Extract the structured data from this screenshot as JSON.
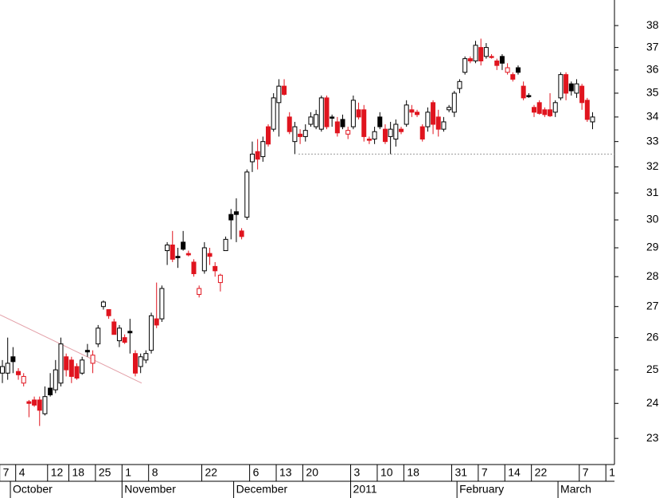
{
  "chart_data": {
    "type": "candlestick",
    "log_scale": true,
    "ylim": [
      22.28,
      39.2
    ],
    "yticks": [
      23,
      24,
      25,
      26,
      27,
      28,
      29,
      30,
      31,
      32,
      33,
      34,
      35,
      36,
      37,
      38
    ],
    "up_color": "#000000",
    "down_color": "#e0141e",
    "trendline": [
      26.73,
      24.6
    ],
    "hline": 32.5,
    "categories": [
      "7",
      null,
      null,
      "4",
      null,
      null,
      null,
      null,
      null,
      "12",
      null,
      null,
      null,
      "18",
      null,
      null,
      null,
      null,
      "25",
      null,
      null,
      null,
      null,
      "1",
      null,
      null,
      null,
      null,
      "8",
      null,
      null,
      null,
      null,
      null,
      null,
      null,
      null,
      null,
      "22",
      null,
      null,
      null,
      null,
      null,
      null,
      null,
      null,
      "6",
      null,
      null,
      null,
      null,
      "13",
      null,
      null,
      null,
      null,
      "20",
      null,
      null,
      null,
      null,
      null,
      null,
      null,
      null,
      "3",
      null,
      null,
      null,
      null,
      "10",
      null,
      null,
      null,
      null,
      "18",
      null,
      null,
      null,
      null,
      null,
      null,
      null,
      null,
      "31",
      null,
      null,
      null,
      null,
      "7",
      null,
      null,
      null,
      null,
      "14",
      null,
      null,
      null,
      null,
      "22",
      null,
      null,
      null,
      null,
      null,
      null,
      null,
      null,
      "7",
      null,
      null,
      null,
      null,
      "1"
    ],
    "months": [
      null,
      null,
      "October",
      null,
      null,
      null,
      null,
      null,
      null,
      null,
      null,
      null,
      null,
      null,
      null,
      null,
      null,
      null,
      null,
      null,
      null,
      null,
      null,
      "November",
      null,
      null,
      null,
      null,
      null,
      null,
      null,
      null,
      null,
      null,
      null,
      null,
      null,
      null,
      null,
      null,
      null,
      null,
      null,
      null,
      "December",
      null,
      null,
      null,
      null,
      null,
      null,
      null,
      null,
      null,
      null,
      null,
      null,
      null,
      null,
      null,
      null,
      null,
      null,
      null,
      null,
      null,
      "2011",
      null,
      null,
      null,
      null,
      null,
      null,
      null,
      null,
      null,
      null,
      null,
      null,
      null,
      null,
      null,
      null,
      null,
      null,
      null,
      "February",
      null,
      null,
      null,
      null,
      null,
      null,
      null,
      null,
      null,
      null,
      null,
      null,
      null,
      null,
      null,
      null,
      null,
      null,
      "March",
      null,
      null,
      null,
      null,
      null,
      null,
      null,
      null,
      null
    ],
    "candles": [
      {
        "open": 24.9,
        "high": 25.3,
        "low": 24.6,
        "close": 25.1
      },
      {
        "open": 24.9,
        "high": 26.0,
        "low": 24.7,
        "close": 25.2
      },
      {
        "open": 25.4,
        "high": 25.7,
        "low": 24.9,
        "close": 25.25
      },
      {
        "open": 24.95,
        "high": 25.05,
        "low": 24.7,
        "close": 24.85
      },
      {
        "open": 24.6,
        "high": 24.9,
        "low": 24.5,
        "close": 24.8
      },
      {
        "open": 24.05,
        "high": 24.1,
        "low": 23.6,
        "close": 24.0
      },
      {
        "open": 24.1,
        "high": 24.2,
        "low": 23.9,
        "close": 23.95
      },
      {
        "open": 24.1,
        "high": 24.2,
        "low": 23.35,
        "close": 23.8
      },
      {
        "open": 23.7,
        "high": 24.5,
        "low": 23.65,
        "close": 24.2
      },
      {
        "open": 24.45,
        "high": 24.9,
        "low": 24.2,
        "close": 24.25
      },
      {
        "open": 24.4,
        "high": 25.3,
        "low": 24.3,
        "close": 25.0
      },
      {
        "open": 24.6,
        "high": 26.0,
        "low": 24.5,
        "close": 25.8
      },
      {
        "open": 25.4,
        "high": 25.5,
        "low": 24.8,
        "close": 25.0
      },
      {
        "open": 25.3,
        "high": 25.4,
        "low": 24.6,
        "close": 24.8
      },
      {
        "open": 25.1,
        "high": 25.2,
        "low": 24.7,
        "close": 24.75
      },
      {
        "open": 24.9,
        "high": 25.4,
        "low": 24.85,
        "close": 25.3
      },
      {
        "open": 25.6,
        "high": 25.8,
        "low": 25.4,
        "close": 25.55
      },
      {
        "open": 25.2,
        "high": 25.6,
        "low": 24.9,
        "close": 25.45
      },
      {
        "open": 25.8,
        "high": 26.4,
        "low": 25.7,
        "close": 26.3
      },
      {
        "open": 27.0,
        "high": 27.2,
        "low": 26.9,
        "close": 27.15
      },
      {
        "open": 26.9,
        "high": 26.9,
        "low": 26.6,
        "close": 26.7
      },
      {
        "open": 26.5,
        "high": 26.6,
        "low": 26.1,
        "close": 26.1
      },
      {
        "open": 25.9,
        "high": 26.4,
        "low": 25.7,
        "close": 26.3
      },
      {
        "open": 26.0,
        "high": 26.1,
        "low": 25.8,
        "close": 25.85
      },
      {
        "open": 26.2,
        "high": 26.6,
        "low": 25.5,
        "close": 26.15
      },
      {
        "open": 25.5,
        "high": 25.6,
        "low": 24.8,
        "close": 24.9
      },
      {
        "open": 25.1,
        "high": 25.5,
        "low": 24.9,
        "close": 25.4
      },
      {
        "open": 25.3,
        "high": 25.6,
        "low": 25.2,
        "close": 25.5
      },
      {
        "open": 25.6,
        "high": 26.8,
        "low": 25.5,
        "close": 26.7
      },
      {
        "open": 26.6,
        "high": 27.8,
        "low": 26.3,
        "close": 26.4
      },
      {
        "open": 26.6,
        "high": 27.7,
        "low": 26.5,
        "close": 27.6
      },
      {
        "open": 28.9,
        "high": 29.2,
        "low": 28.4,
        "close": 29.1
      },
      {
        "open": 29.1,
        "high": 29.6,
        "low": 28.5,
        "close": 28.6
      },
      {
        "open": 28.7,
        "high": 29.0,
        "low": 28.3,
        "close": 28.65
      },
      {
        "open": 29.2,
        "high": 29.6,
        "low": 28.9,
        "close": 28.95
      },
      {
        "open": 28.8,
        "high": 28.9,
        "low": 28.7,
        "close": 28.75
      },
      {
        "open": 28.5,
        "high": 28.6,
        "low": 28.0,
        "close": 28.1
      },
      {
        "open": 27.4,
        "high": 27.7,
        "low": 27.3,
        "close": 27.6
      },
      {
        "open": 28.2,
        "high": 29.2,
        "low": 28.1,
        "close": 29.0
      },
      {
        "open": 28.8,
        "high": 29.0,
        "low": 28.4,
        "close": 28.7
      },
      {
        "open": 28.35,
        "high": 28.5,
        "low": 28.0,
        "close": 28.2
      },
      {
        "open": 27.8,
        "high": 28.1,
        "low": 27.5,
        "close": 28.05
      },
      {
        "open": 28.9,
        "high": 29.4,
        "low": 28.9,
        "close": 29.3
      },
      {
        "open": 30.2,
        "high": 30.4,
        "low": 29.3,
        "close": 30.0
      },
      {
        "open": 30.3,
        "high": 30.8,
        "low": 29.2,
        "close": 30.2
      },
      {
        "open": 29.6,
        "high": 29.7,
        "low": 29.3,
        "close": 29.4
      },
      {
        "open": 30.1,
        "high": 31.9,
        "low": 30.0,
        "close": 31.8
      },
      {
        "open": 32.2,
        "high": 33.0,
        "low": 31.8,
        "close": 32.5
      },
      {
        "open": 32.6,
        "high": 33.1,
        "low": 31.9,
        "close": 32.3
      },
      {
        "open": 32.4,
        "high": 33.2,
        "low": 32.2,
        "close": 33.0
      },
      {
        "open": 33.6,
        "high": 33.7,
        "low": 32.8,
        "close": 32.9
      },
      {
        "open": 33.5,
        "high": 35.0,
        "low": 33.4,
        "close": 34.8
      },
      {
        "open": 34.6,
        "high": 35.6,
        "low": 33.2,
        "close": 35.3
      },
      {
        "open": 35.3,
        "high": 35.6,
        "low": 34.9,
        "close": 34.95
      },
      {
        "open": 34.0,
        "high": 34.2,
        "low": 33.3,
        "close": 33.4
      },
      {
        "open": 33.0,
        "high": 33.8,
        "low": 32.5,
        "close": 33.6
      },
      {
        "open": 33.3,
        "high": 33.5,
        "low": 32.9,
        "close": 33.2
      },
      {
        "open": 33.2,
        "high": 33.7,
        "low": 33.0,
        "close": 33.45
      },
      {
        "open": 33.7,
        "high": 34.2,
        "low": 33.6,
        "close": 34.0
      },
      {
        "open": 33.6,
        "high": 34.3,
        "low": 33.5,
        "close": 34.1
      },
      {
        "open": 33.5,
        "high": 34.9,
        "low": 33.4,
        "close": 34.8
      },
      {
        "open": 34.8,
        "high": 34.9,
        "low": 33.5,
        "close": 33.6
      },
      {
        "open": 34.0,
        "high": 34.1,
        "low": 33.6,
        "close": 33.95
      },
      {
        "open": 33.8,
        "high": 34.0,
        "low": 33.2,
        "close": 33.35
      },
      {
        "open": 33.9,
        "high": 34.1,
        "low": 33.5,
        "close": 33.6
      },
      {
        "open": 33.3,
        "high": 33.6,
        "low": 33.1,
        "close": 33.45
      },
      {
        "open": 33.6,
        "high": 34.9,
        "low": 33.5,
        "close": 34.7
      },
      {
        "open": 34.3,
        "high": 34.6,
        "low": 33.9,
        "close": 34.0
      },
      {
        "open": 34.3,
        "high": 34.5,
        "low": 33.0,
        "close": 33.2
      },
      {
        "open": 33.1,
        "high": 33.2,
        "low": 32.9,
        "close": 33.05
      },
      {
        "open": 33.1,
        "high": 33.6,
        "low": 32.9,
        "close": 33.4
      },
      {
        "open": 34.0,
        "high": 34.2,
        "low": 33.5,
        "close": 33.6
      },
      {
        "open": 33.5,
        "high": 33.7,
        "low": 32.9,
        "close": 33.0
      },
      {
        "open": 33.2,
        "high": 33.8,
        "low": 32.5,
        "close": 33.5
      },
      {
        "open": 33.1,
        "high": 33.9,
        "low": 32.8,
        "close": 33.7
      },
      {
        "open": 33.5,
        "high": 33.6,
        "low": 33.3,
        "close": 33.4
      },
      {
        "open": 33.7,
        "high": 34.7,
        "low": 33.6,
        "close": 34.5
      },
      {
        "open": 34.3,
        "high": 34.5,
        "low": 34.0,
        "close": 34.2
      },
      {
        "open": 34.2,
        "high": 34.3,
        "low": 34.0,
        "close": 34.1
      },
      {
        "open": 33.6,
        "high": 33.7,
        "low": 33.0,
        "close": 33.1
      },
      {
        "open": 33.6,
        "high": 34.4,
        "low": 33.4,
        "close": 34.2
      },
      {
        "open": 34.6,
        "high": 34.7,
        "low": 33.3,
        "close": 33.7
      },
      {
        "open": 34.0,
        "high": 34.3,
        "low": 33.2,
        "close": 33.5
      },
      {
        "open": 33.5,
        "high": 34.0,
        "low": 33.4,
        "close": 33.8
      },
      {
        "open": 34.3,
        "high": 34.5,
        "low": 34.2,
        "close": 34.4
      },
      {
        "open": 34.2,
        "high": 35.1,
        "low": 34.0,
        "close": 35.0
      },
      {
        "open": 35.2,
        "high": 35.6,
        "low": 35.0,
        "close": 35.5
      },
      {
        "open": 35.9,
        "high": 36.6,
        "low": 35.8,
        "close": 36.5
      },
      {
        "open": 36.5,
        "high": 36.6,
        "low": 36.3,
        "close": 36.4
      },
      {
        "open": 36.4,
        "high": 37.3,
        "low": 36.3,
        "close": 37.1
      },
      {
        "open": 37.0,
        "high": 37.4,
        "low": 36.2,
        "close": 36.4
      },
      {
        "open": 36.6,
        "high": 37.2,
        "low": 36.5,
        "close": 37.0
      },
      {
        "open": 36.6,
        "high": 36.7,
        "low": 36.5,
        "close": 36.55
      },
      {
        "open": 36.4,
        "high": 36.5,
        "low": 36.0,
        "close": 36.2
      },
      {
        "open": 36.6,
        "high": 36.7,
        "low": 36.0,
        "close": 36.3
      },
      {
        "open": 35.9,
        "high": 36.3,
        "low": 35.8,
        "close": 36.1
      },
      {
        "open": 35.8,
        "high": 35.9,
        "low": 35.5,
        "close": 35.6
      },
      {
        "open": 36.1,
        "high": 36.2,
        "low": 35.8,
        "close": 35.9
      },
      {
        "open": 35.3,
        "high": 35.5,
        "low": 34.7,
        "close": 34.8
      },
      {
        "open": 34.9,
        "high": 35.0,
        "low": 34.8,
        "close": 34.85
      },
      {
        "open": 34.4,
        "high": 34.5,
        "low": 34.0,
        "close": 34.2
      },
      {
        "open": 34.6,
        "high": 34.7,
        "low": 34.1,
        "close": 34.15
      },
      {
        "open": 34.3,
        "high": 34.4,
        "low": 34.0,
        "close": 34.1
      },
      {
        "open": 34.3,
        "high": 35.0,
        "low": 34.0,
        "close": 34.05
      },
      {
        "open": 34.2,
        "high": 34.7,
        "low": 34.0,
        "close": 34.6
      },
      {
        "open": 34.8,
        "high": 35.9,
        "low": 34.7,
        "close": 35.8
      },
      {
        "open": 35.8,
        "high": 35.9,
        "low": 34.7,
        "close": 35.0
      },
      {
        "open": 35.4,
        "high": 35.5,
        "low": 34.9,
        "close": 35.1
      },
      {
        "open": 35.0,
        "high": 35.6,
        "low": 34.8,
        "close": 35.4
      },
      {
        "open": 35.3,
        "high": 35.4,
        "low": 34.3,
        "close": 34.6
      },
      {
        "open": 34.7,
        "high": 34.8,
        "low": 33.8,
        "close": 33.9
      },
      {
        "open": 33.8,
        "high": 34.2,
        "low": 33.5,
        "close": 34.0
      },
      null,
      null,
      null
    ]
  }
}
